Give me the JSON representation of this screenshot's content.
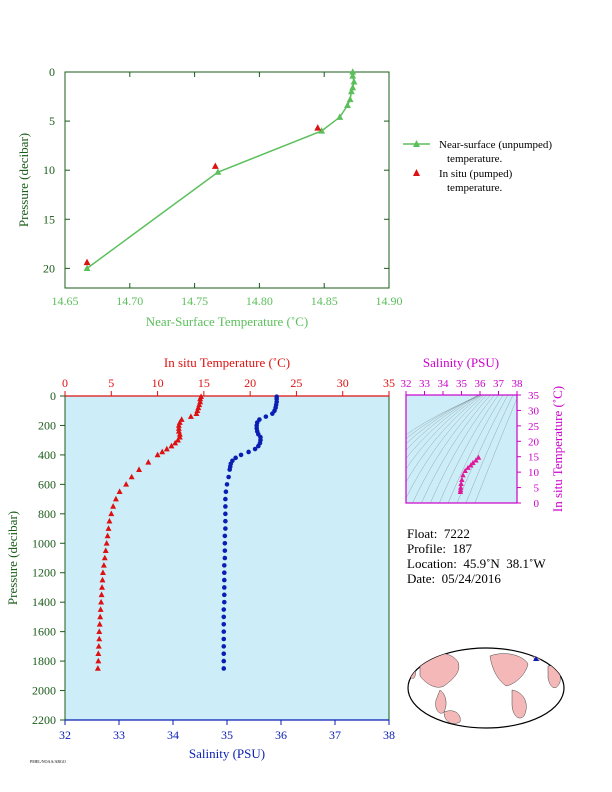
{
  "chart_data": [
    {
      "type": "line",
      "xlabel": "Near-Surface Temperature (˚C)",
      "ylabel": "Pressure (decibar)",
      "xlim": [
        14.65,
        14.9
      ],
      "ylim": [
        0,
        22
      ],
      "x_ticks": [
        "14.65",
        "14.70",
        "14.75",
        "14.80",
        "14.85",
        "14.90"
      ],
      "y_ticks": [
        "0",
        "5",
        "10",
        "15",
        "20"
      ],
      "grid": false,
      "legend_position": "right",
      "series": [
        {
          "name": "Near-surface (unpumped) temperature.",
          "color": "#5bbf5b",
          "marker": "triangle",
          "points": [
            [
              14.872,
              0.0
            ],
            [
              14.872,
              0.4
            ],
            [
              14.873,
              1.0
            ],
            [
              14.872,
              1.6
            ],
            [
              14.871,
              2.0
            ],
            [
              14.87,
              2.8
            ],
            [
              14.868,
              3.4
            ],
            [
              14.862,
              4.6
            ],
            [
              14.848,
              6.0
            ],
            [
              14.768,
              10.2
            ],
            [
              14.667,
              20.0
            ]
          ]
        },
        {
          "name": "In situ (pumped) temperature.",
          "color": "#dd1111",
          "marker": "triangle",
          "points": [
            [
              14.845,
              5.7
            ],
            [
              14.766,
              9.6
            ],
            [
              14.667,
              19.4
            ]
          ]
        }
      ]
    },
    {
      "type": "scatter",
      "x_top_label": "In situ Temperature (˚C)",
      "x_bottom_label": "Salinity (PSU)",
      "ylabel": "Pressure (decibar)",
      "temperature_lim": [
        0,
        35
      ],
      "salinity_lim": [
        32,
        38
      ],
      "ylim": [
        0,
        2200
      ],
      "temperature_ticks": [
        "0",
        "5",
        "10",
        "15",
        "20",
        "25",
        "30",
        "35"
      ],
      "salinity_ticks": [
        "32",
        "33",
        "34",
        "35",
        "36",
        "37",
        "38"
      ],
      "pressure_ticks": [
        "0",
        "200",
        "400",
        "600",
        "800",
        "1000",
        "1200",
        "1400",
        "1600",
        "1800",
        "2000",
        "2200"
      ],
      "background_color": "#cdeef8",
      "series": [
        {
          "name": "In situ Temperature",
          "color": "#dd1111",
          "marker": "triangle",
          "axis": "temperature",
          "pressure": [
            5,
            20,
            40,
            60,
            80,
            100,
            120,
            140,
            160,
            180,
            200,
            220,
            240,
            260,
            280,
            300,
            320,
            340,
            360,
            380,
            400,
            450,
            500,
            550,
            600,
            650,
            700,
            750,
            800,
            850,
            900,
            950,
            1000,
            1050,
            1100,
            1150,
            1200,
            1250,
            1300,
            1350,
            1400,
            1450,
            1500,
            1550,
            1600,
            1650,
            1700,
            1750,
            1800,
            1850
          ],
          "values": [
            14.7,
            14.6,
            14.6,
            14.5,
            14.4,
            14.3,
            14.2,
            13.6,
            12.6,
            12.4,
            12.3,
            12.3,
            12.3,
            12.4,
            12.4,
            12.2,
            11.9,
            11.5,
            11.0,
            10.5,
            10.0,
            9.0,
            8.0,
            7.2,
            6.6,
            5.9,
            5.5,
            5.2,
            5.0,
            4.8,
            4.7,
            4.6,
            4.5,
            4.4,
            4.3,
            4.2,
            4.1,
            4.05,
            4.0,
            3.95,
            3.9,
            3.85,
            3.8,
            3.75,
            3.7,
            3.7,
            3.65,
            3.6,
            3.6,
            3.55
          ]
        },
        {
          "name": "Salinity",
          "color": "#0a1eb4",
          "marker": "circle",
          "axis": "salinity",
          "pressure": [
            5,
            20,
            40,
            60,
            80,
            100,
            120,
            140,
            160,
            180,
            200,
            220,
            240,
            260,
            280,
            300,
            320,
            340,
            360,
            380,
            400,
            420,
            440,
            460,
            480,
            500,
            550,
            600,
            650,
            700,
            750,
            800,
            850,
            900,
            950,
            1000,
            1050,
            1100,
            1150,
            1200,
            1250,
            1300,
            1350,
            1400,
            1450,
            1500,
            1550,
            1600,
            1650,
            1700,
            1750,
            1800,
            1850
          ],
          "values": [
            35.92,
            35.92,
            35.92,
            35.91,
            35.9,
            35.88,
            35.84,
            35.72,
            35.6,
            35.56,
            35.55,
            35.55,
            35.56,
            35.58,
            35.62,
            35.62,
            35.61,
            35.58,
            35.52,
            35.4,
            35.26,
            35.16,
            35.1,
            35.07,
            35.06,
            35.05,
            35.03,
            35.0,
            34.98,
            34.97,
            34.97,
            34.97,
            34.97,
            34.97,
            34.96,
            34.96,
            34.96,
            34.96,
            34.95,
            34.95,
            34.95,
            34.95,
            34.95,
            34.95,
            34.94,
            34.94,
            34.94,
            34.94,
            34.94,
            34.94,
            34.94,
            34.94,
            34.94
          ]
        }
      ]
    },
    {
      "type": "scatter",
      "xlabel": "Salinity (PSU)",
      "ylabel": "In situ Temperature (˚C)",
      "xlim": [
        32,
        38
      ],
      "ylim": [
        0,
        35
      ],
      "x_ticks": [
        "32",
        "33",
        "34",
        "35",
        "36",
        "37",
        "38"
      ],
      "y_ticks": [
        "0",
        "5",
        "10",
        "15",
        "20",
        "25",
        "30",
        "35"
      ],
      "color": "#e0189a",
      "accent_color": "#cc00cc",
      "points": [
        [
          34.94,
          3.6
        ],
        [
          34.95,
          4.2
        ],
        [
          34.96,
          5.0
        ],
        [
          34.98,
          6.2
        ],
        [
          35.02,
          7.5
        ],
        [
          35.08,
          9.0
        ],
        [
          35.2,
          10.4
        ],
        [
          35.35,
          11.4
        ],
        [
          35.5,
          12.2
        ],
        [
          35.62,
          13.0
        ],
        [
          35.78,
          13.8
        ],
        [
          35.92,
          14.7
        ]
      ]
    }
  ],
  "float_info": {
    "float": "Float:  7222",
    "profile": "Profile:  187",
    "location": "Location:  45.9˚N  38.1˚W",
    "date": "Date:  05/24/2016"
  },
  "footer_note": "PMEL/NOAA/ARGO"
}
